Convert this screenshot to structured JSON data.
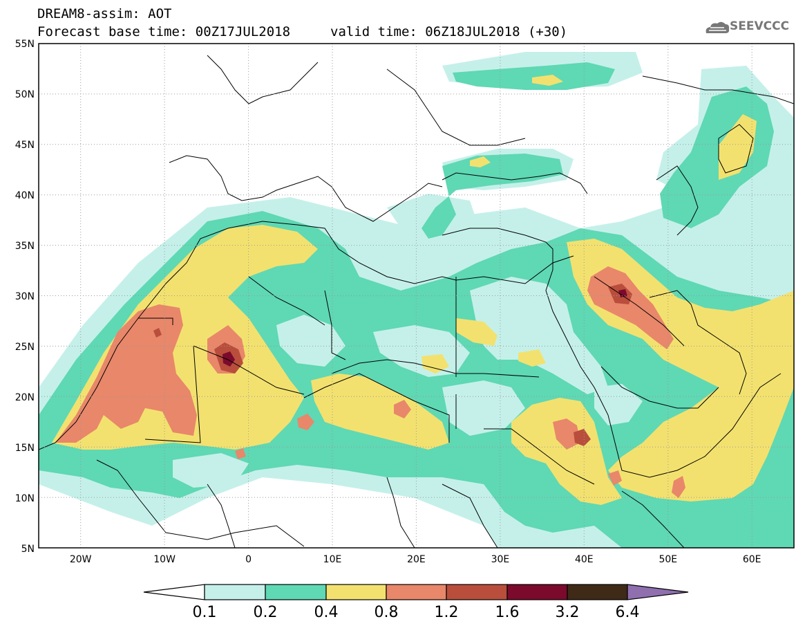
{
  "header": {
    "line1": "DREAM8-assim: AOT",
    "line2": "Forecast base time: 00Z17JUL2018",
    "valid": "valid time: 06Z18JUL2018 (+30)",
    "logo_text": "SEEVCCC",
    "logo_icon": "cloud-icon"
  },
  "map": {
    "lon_range": [
      -25,
      65
    ],
    "lat_range": [
      5,
      55
    ],
    "lat_labels": [
      "55N",
      "50N",
      "45N",
      "40N",
      "35N",
      "30N",
      "25N",
      "20N",
      "15N",
      "10N",
      "5N"
    ],
    "lon_labels": [
      "20W",
      "10W",
      "0",
      "10E",
      "20E",
      "30E",
      "40E",
      "50E",
      "60E"
    ],
    "grid": "dotted"
  },
  "colorbar": {
    "levels": [
      "0.1",
      "0.2",
      "0.4",
      "0.8",
      "1.2",
      "1.6",
      "3.2",
      "6.4"
    ],
    "colors": [
      "#ffffff",
      "#c5f0ea",
      "#5fd8b4",
      "#f3e16f",
      "#e8876a",
      "#b94e3c",
      "#7c0a2c",
      "#3f2a17",
      "#8f6fae"
    ]
  }
}
